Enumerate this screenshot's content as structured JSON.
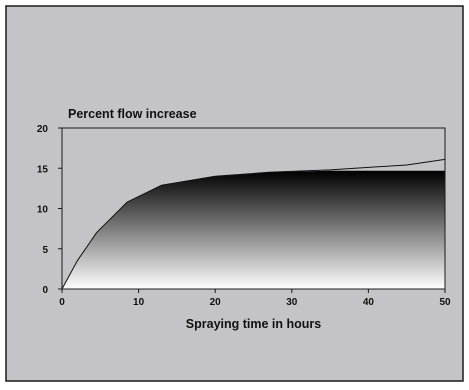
{
  "chart_data": {
    "type": "area",
    "title": "Percent flow increase",
    "xlabel": "Spraying time in hours",
    "ylabel": "",
    "xlim": [
      0,
      50
    ],
    "ylim": [
      0,
      20
    ],
    "xticks": [
      0,
      10,
      20,
      30,
      40,
      50
    ],
    "yticks": [
      0,
      5,
      10,
      15,
      20
    ],
    "grid": false,
    "series": [
      {
        "x": [
          0,
          2,
          4.5,
          8.5,
          13,
          20,
          27,
          35,
          40,
          45,
          50
        ],
        "values": [
          0,
          3.5,
          7,
          10.8,
          12.9,
          14.0,
          14.5,
          14.8,
          15.1,
          15.4,
          16.1
        ]
      }
    ],
    "fill_plateau": 14.7,
    "colors": {
      "background": "#c4c4c8",
      "frame": "#1a1a1a",
      "fill_top": "#000000",
      "fill_bottom": "#ffffff"
    }
  }
}
